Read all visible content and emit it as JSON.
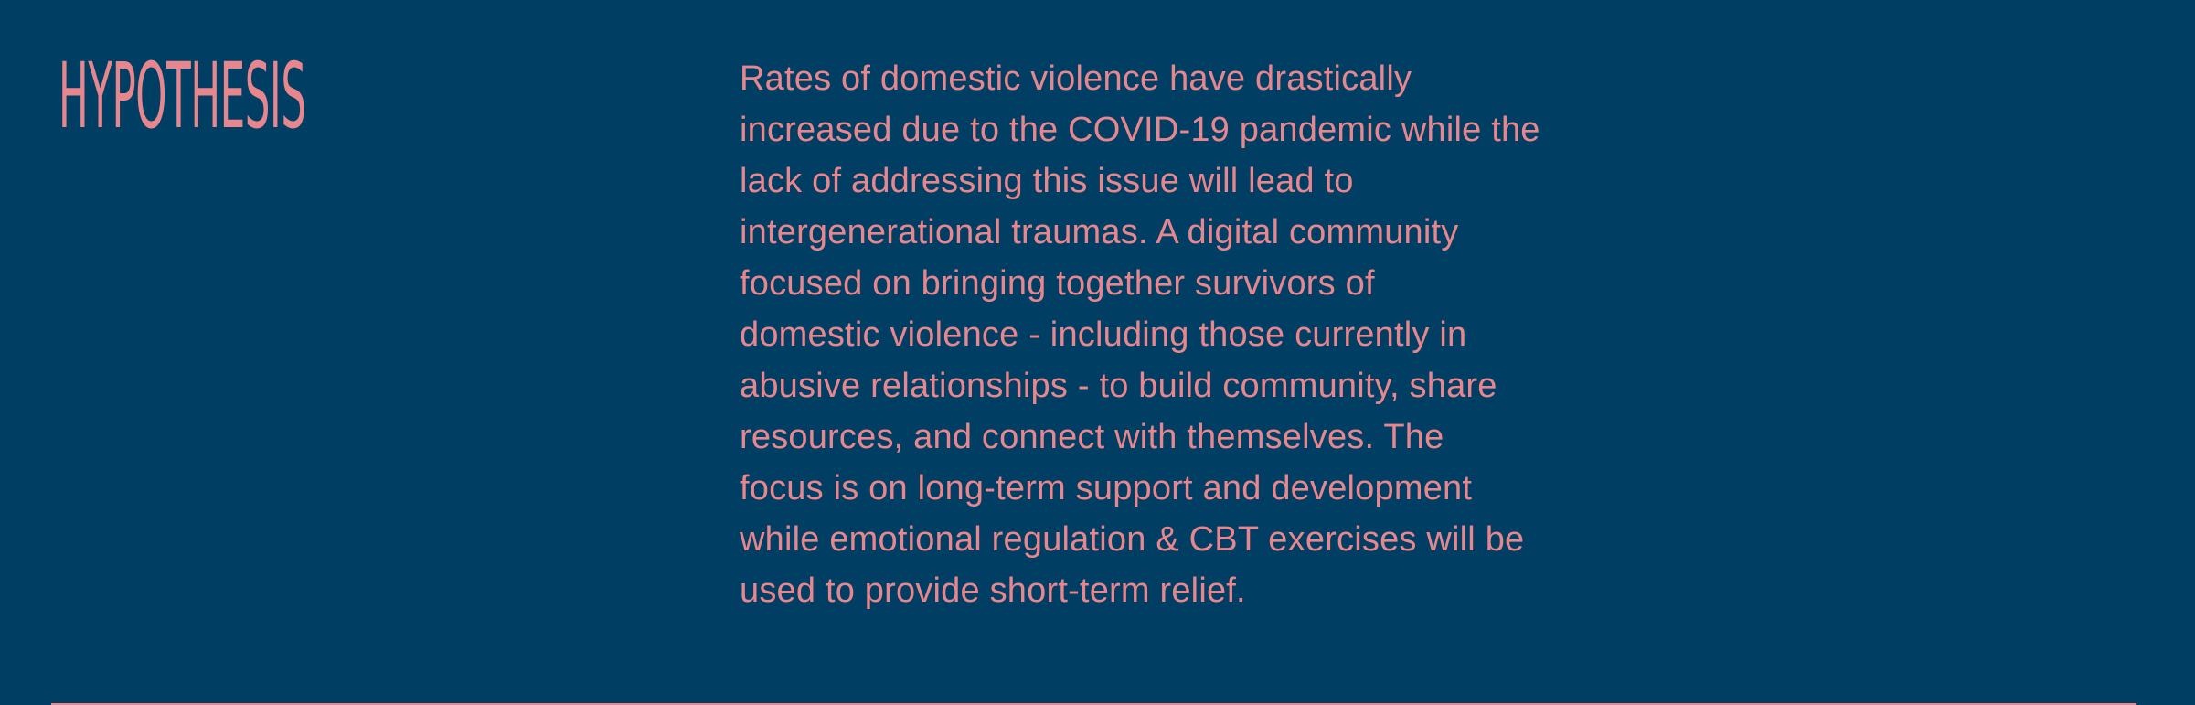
{
  "section": {
    "heading": "HYPOTHESIS",
    "body": "Rates of domestic violence have drastically\nincreased due to the COVID-19 pandemic while the\nlack of addressing this issue will lead to\nintergenerational traumas. A digital community\nfocused on bringing together survivors of\ndomestic violence - including those currently in\nabusive relationships - to build community, share\nresources, and connect with themselves. The\nfocus is on long-term support and development\nwhile emotional regulation & CBT exercises will be\nused to provide short-term relief."
  },
  "colors": {
    "background": "#003f63",
    "accent": "#e8868d"
  }
}
